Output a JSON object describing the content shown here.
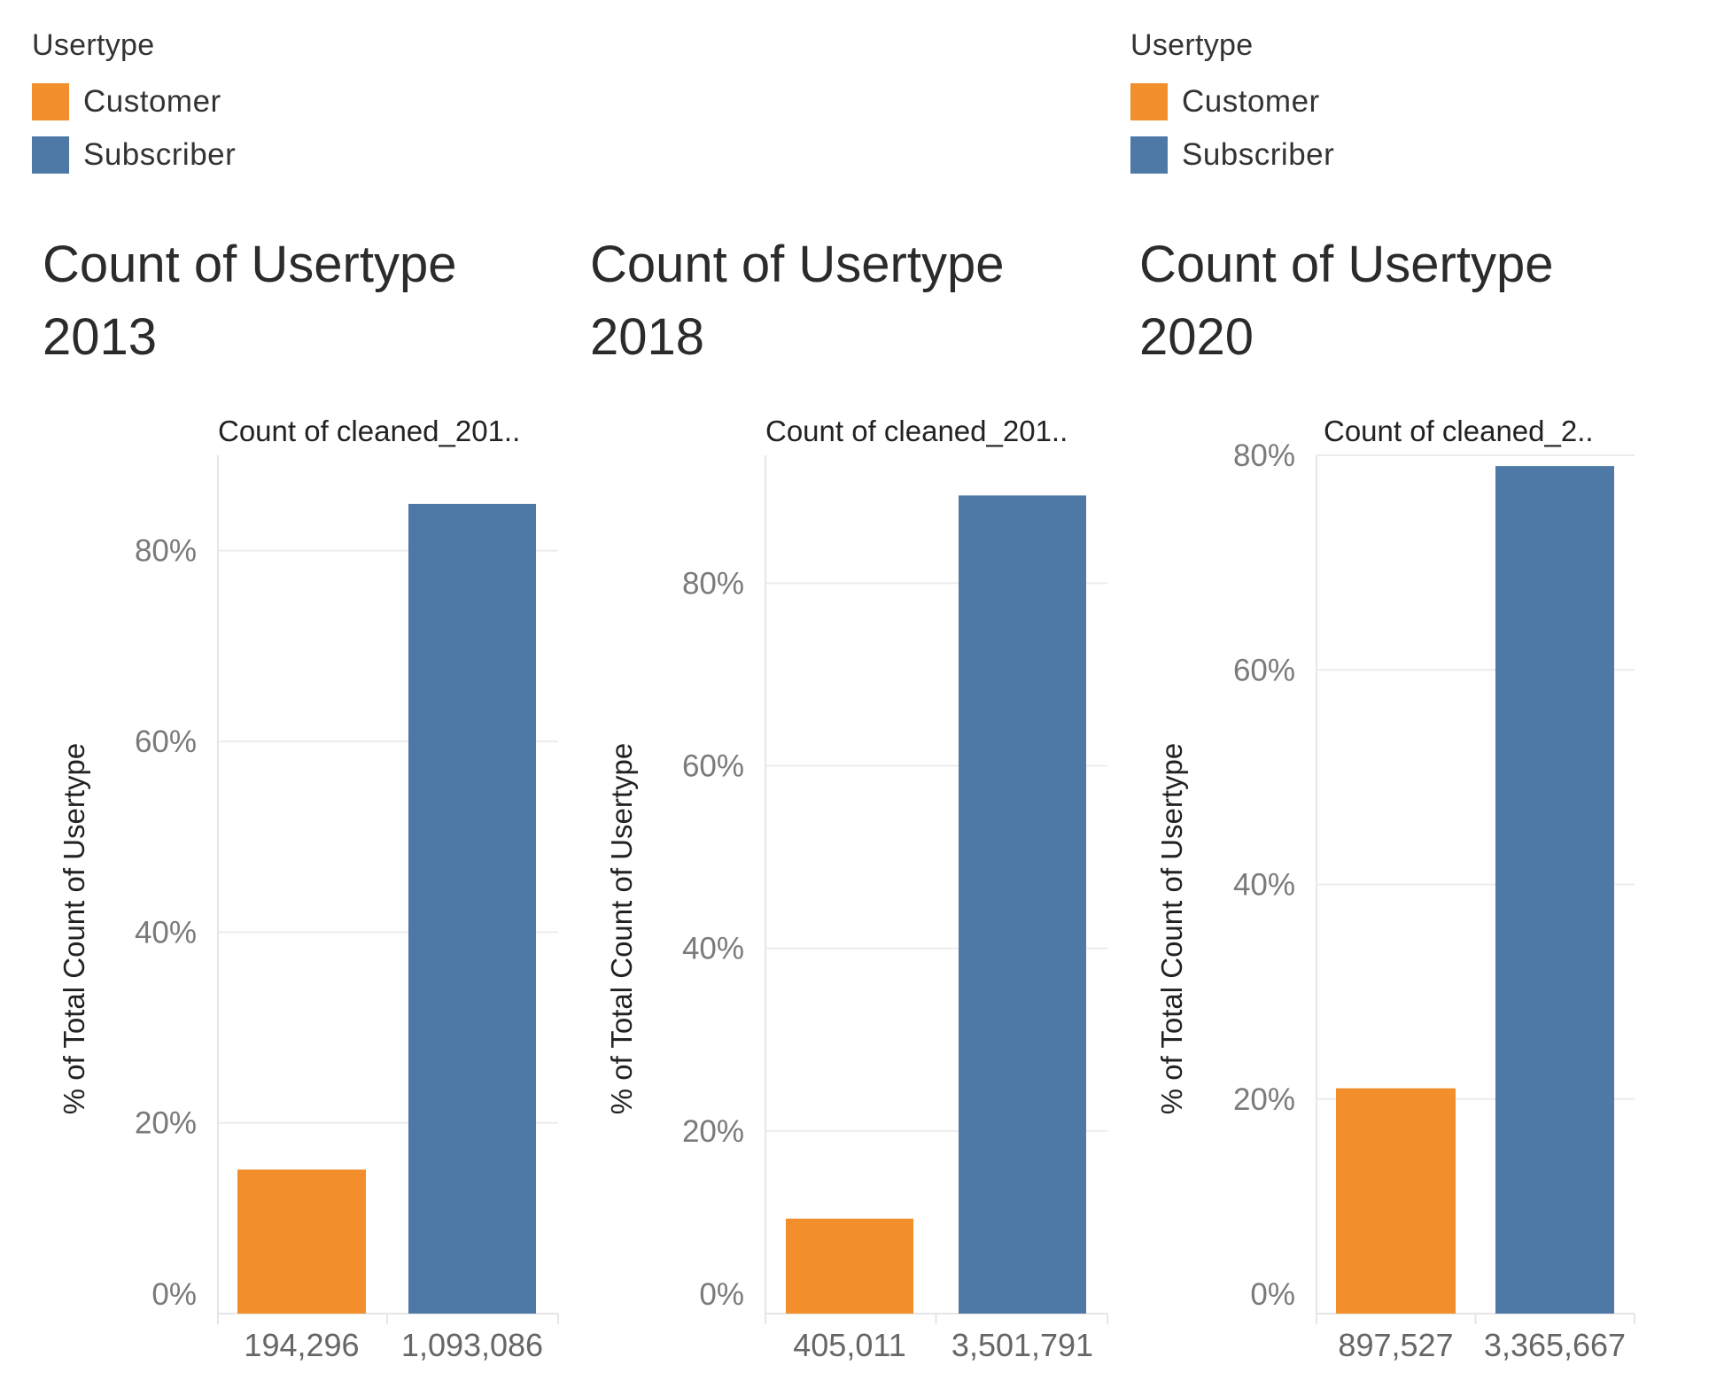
{
  "legends": [
    {
      "title": "Usertype",
      "items": [
        {
          "label": "Customer",
          "color": "#F28E2B"
        },
        {
          "label": "Subscriber",
          "color": "#4E79A7"
        }
      ]
    },
    {
      "title": "Usertype",
      "items": [
        {
          "label": "Customer",
          "color": "#F28E2B"
        },
        {
          "label": "Subscriber",
          "color": "#4E79A7"
        }
      ]
    }
  ],
  "chart_data": [
    {
      "type": "bar",
      "title_line1": "Count of Usertype",
      "title_line2": "2013",
      "column_header": "Count of cleaned_201..",
      "ylabel": "% of Total Count of Usertype",
      "categories": [
        "194,296",
        "1,093,086"
      ],
      "series": [
        {
          "name": "% of Total Count of Usertype",
          "values": [
            15.1,
            84.9
          ],
          "colors": [
            "#F28E2B",
            "#4E79A7"
          ]
        }
      ],
      "ylim": [
        0,
        90
      ],
      "yticks": [
        0,
        20,
        40,
        60,
        80
      ],
      "ytick_labels": [
        "0%",
        "20%",
        "40%",
        "60%",
        "80%"
      ]
    },
    {
      "type": "bar",
      "title_line1": "Count of Usertype",
      "title_line2": "2018",
      "column_header": "Count of cleaned_201..",
      "ylabel": "% of Total Count of Usertype",
      "categories": [
        "405,011",
        "3,501,791"
      ],
      "series": [
        {
          "name": "% of Total Count of Usertype",
          "values": [
            10.4,
            89.6
          ],
          "colors": [
            "#F28E2B",
            "#4E79A7"
          ]
        }
      ],
      "ylim": [
        0,
        94
      ],
      "yticks": [
        0,
        20,
        40,
        60,
        80
      ],
      "ytick_labels": [
        "0%",
        "20%",
        "40%",
        "60%",
        "80%"
      ]
    },
    {
      "type": "bar",
      "title_line1": "Count of Usertype",
      "title_line2": "2020",
      "column_header": "Count of cleaned_2..",
      "ylabel": "% of Total Count of Usertype",
      "categories": [
        "897,527",
        "3,365,667"
      ],
      "series": [
        {
          "name": "% of Total Count of Usertype",
          "values": [
            21.0,
            79.0
          ],
          "colors": [
            "#F28E2B",
            "#4E79A7"
          ]
        }
      ],
      "ylim": [
        0,
        80
      ],
      "yticks": [
        0,
        20,
        40,
        60,
        80
      ],
      "ytick_labels": [
        "0%",
        "20%",
        "40%",
        "60%",
        "80%"
      ]
    }
  ]
}
